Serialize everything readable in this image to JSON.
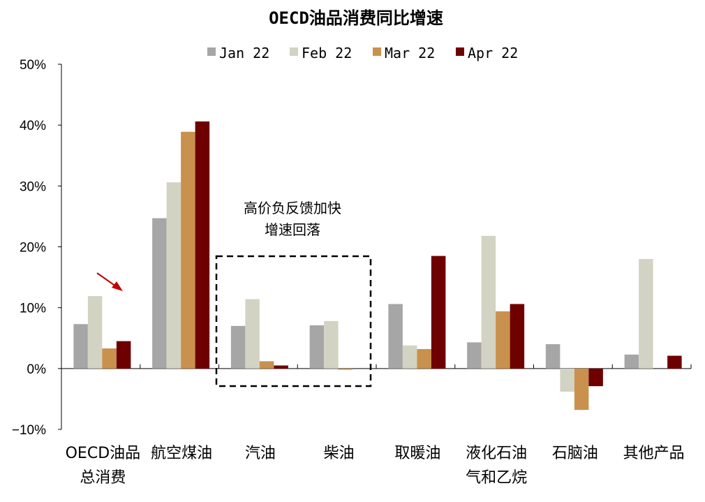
{
  "chart_data": {
    "type": "bar",
    "title": "OECD油品消费同比增速",
    "categories": [
      [
        "OECD油品",
        "总消费"
      ],
      [
        "航空煤油"
      ],
      [
        "汽油"
      ],
      [
        "柴油"
      ],
      [
        "取暖油"
      ],
      [
        "液化石油",
        "气和乙烷"
      ],
      [
        "石脑油"
      ],
      [
        "其他产品"
      ]
    ],
    "series": [
      {
        "name": "Jan 22",
        "color": "#a6a6a6",
        "values": [
          7.3,
          24.7,
          7.0,
          7.1,
          10.6,
          4.3,
          4.0,
          2.3
        ]
      },
      {
        "name": "Feb 22",
        "color": "#d3d3c3",
        "values": [
          11.9,
          30.6,
          11.4,
          7.8,
          3.8,
          21.8,
          -3.8,
          18.0
        ]
      },
      {
        "name": "Mar 22",
        "color": "#c9914d",
        "values": [
          3.3,
          38.9,
          1.2,
          -0.2,
          3.2,
          9.4,
          -6.8,
          0.0
        ]
      },
      {
        "name": "Apr 22",
        "color": "#6e0000",
        "values": [
          4.5,
          40.6,
          0.5,
          0.0,
          18.5,
          10.6,
          -2.9,
          2.1
        ]
      }
    ],
    "yticks": [
      "50%",
      "40%",
      "30%",
      "20%",
      "10%",
      "0%",
      "−10%"
    ],
    "ylim": [
      -10,
      50
    ],
    "legend_position": "top",
    "grid": false,
    "annotation": {
      "lines": [
        "高价负反馈加快",
        "增速回落"
      ],
      "highlight_categories": [
        "汽油",
        "柴油"
      ],
      "highlight_style": "dashed-box"
    },
    "arrow": {
      "target_category": "OECD油品总消费",
      "color": "#c00000"
    }
  }
}
